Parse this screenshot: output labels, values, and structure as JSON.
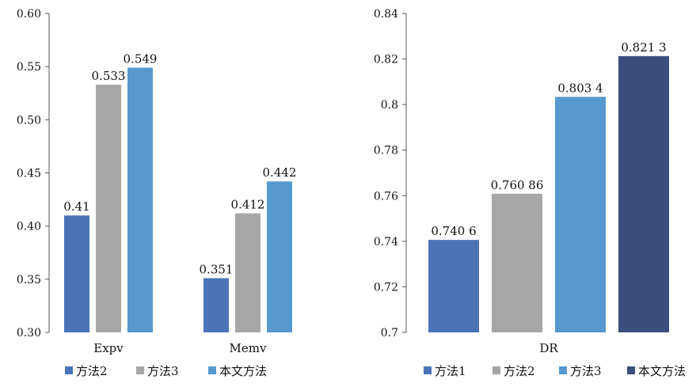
{
  "chart_data": [
    {
      "type": "bar",
      "categories": [
        "Expv",
        "Memv"
      ],
      "series": [
        {
          "name": "方法2",
          "values": [
            0.41,
            0.351
          ],
          "labels": [
            "0.41",
            "0.351"
          ]
        },
        {
          "name": "方法3",
          "values": [
            0.533,
            0.412
          ],
          "labels": [
            "0.533",
            "0.412"
          ]
        },
        {
          "name": "本文方法",
          "values": [
            0.549,
            0.442
          ],
          "labels": [
            "0.549",
            "0.442"
          ]
        }
      ],
      "ylim": [
        0.3,
        0.6
      ],
      "yticks": [
        "0.30",
        "0.35",
        "0.40",
        "0.45",
        "0.50",
        "0.55",
        "0.60"
      ],
      "xlabel": "",
      "ylabel": "",
      "grid": false,
      "legend": "bottom"
    },
    {
      "type": "bar",
      "categories": [
        "DR"
      ],
      "series": [
        {
          "name": "方法1",
          "values": [
            0.7406
          ],
          "labels": [
            "0.740 6"
          ]
        },
        {
          "name": "方法2",
          "values": [
            0.76086
          ],
          "labels": [
            "0.760 86"
          ]
        },
        {
          "name": "方法3",
          "values": [
            0.8034
          ],
          "labels": [
            "0.803 4"
          ]
        },
        {
          "name": "本文方法",
          "values": [
            0.8213
          ],
          "labels": [
            "0.821 3"
          ]
        }
      ],
      "ylim": [
        0.7,
        0.84
      ],
      "yticks": [
        "0.7",
        "0.72",
        "0.74",
        "0.76",
        "0.78",
        "0.8",
        "0.82",
        "0.84"
      ],
      "xlabel": "",
      "ylabel": "",
      "grid": false,
      "legend": "bottom"
    }
  ],
  "colors": {
    "方法1": "#4b73b8",
    "方法2_left": "#4b73b8",
    "方法2": "#a6a6a6",
    "方法3_left": "#a6a6a6",
    "方法3": "#5599cf",
    "本文方法_left": "#5599cf",
    "本文方法": "#3c4f7c",
    "axis": "#555555"
  }
}
